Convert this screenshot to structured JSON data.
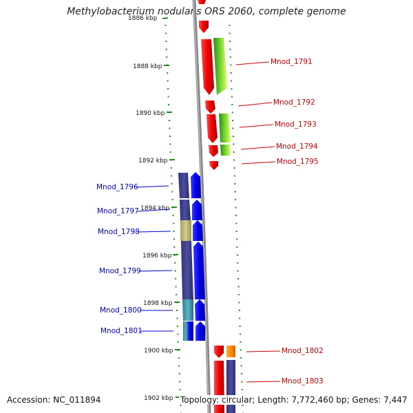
{
  "title": "Methylobacterium nodulans ORS 2060, complete genome",
  "accession": "Accession: NC_011894",
  "topology": "Topology: circular; Length: 7,772,460 bp; Genes: 7,447",
  "colors": {
    "backbone": "#8a8a8a",
    "tick": "#1f8a1f",
    "forward_label": "#cc0000",
    "reverse_label": "#0000cc",
    "red_gene": "#ee0000",
    "green_gene": "#66cc22",
    "blue_gene": "#0000ee",
    "slate_gene": "#4a4a99",
    "tan_gene": "#c8c07a",
    "teal_gene": "#4aa0b0",
    "orange_gene": "#ff8800"
  },
  "ticks": [
    "1886 kbp",
    "1888 kbp",
    "1890 kbp",
    "1892 kbp",
    "1894 kbp",
    "1896 kbp",
    "1898 kbp",
    "1900 kbp",
    "1902 kbp"
  ],
  "forward_labels": [
    "Mnod_1791",
    "Mnod_1792",
    "Mnod_1793",
    "Mnod_1794",
    "Mnod_1795",
    "Mnod_1802",
    "Mnod_1803"
  ],
  "reverse_labels": [
    "Mnod_1796",
    "Mnod_1797",
    "Mnod_1798",
    "Mnod_1799",
    "Mnod_1800",
    "Mnod_1801"
  ]
}
